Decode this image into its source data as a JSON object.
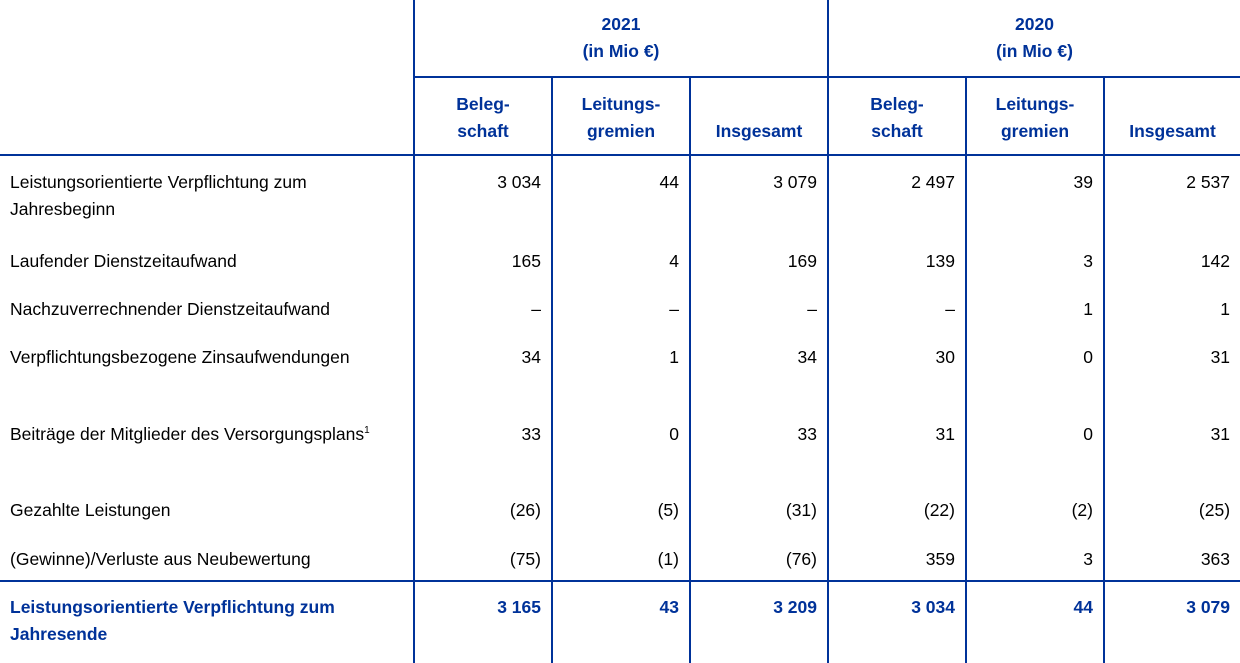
{
  "header": {
    "years": [
      {
        "year": "2021",
        "unit": "(in Mio €)"
      },
      {
        "year": "2020",
        "unit": "(in Mio €)"
      }
    ],
    "subcolumns": [
      {
        "line1": "Beleg-",
        "line2": "schaft"
      },
      {
        "line1": "Leitungs-",
        "line2": "gremien"
      },
      {
        "line1": "",
        "line2": "Insgesamt"
      }
    ]
  },
  "rows": [
    {
      "label": "Leistungsorientierte Verpflichtung zum Jahresbeginn",
      "footnote": "",
      "values": [
        "3 034",
        "44",
        "3 079",
        "2 497",
        "39",
        "2 537"
      ]
    },
    {
      "label": "Laufender Dienstzeitaufwand",
      "footnote": "",
      "values": [
        "165",
        "4",
        "169",
        "139",
        "3",
        "142"
      ]
    },
    {
      "label": "Nachzuverrechnender Dienstzeitaufwand",
      "footnote": "",
      "values": [
        "–",
        "–",
        "–",
        "–",
        "1",
        "1"
      ]
    },
    {
      "label": "Verpflichtungsbezogene Zinsaufwendungen",
      "footnote": "",
      "values": [
        "34",
        "1",
        "34",
        "30",
        "0",
        "31"
      ]
    },
    {
      "label": "Beiträge der Mitglieder des Versorgungsplans",
      "footnote": "1",
      "values": [
        "33",
        "0",
        "33",
        "31",
        "0",
        "31"
      ]
    },
    {
      "label": "Gezahlte Leistungen",
      "footnote": "",
      "values": [
        "(26)",
        "(5)",
        "(31)",
        "(22)",
        "(2)",
        "(25)"
      ]
    },
    {
      "label": "(Gewinne)/Verluste aus Neubewertung",
      "footnote": "",
      "values": [
        "(75)",
        "(1)",
        "(76)",
        "359",
        "3",
        "363"
      ]
    }
  ],
  "total": {
    "label": "Leistungsorientierte Verpflichtung zum Jahresende",
    "values": [
      "3 165",
      "43",
      "3 209",
      "3 034",
      "44",
      "3 079"
    ]
  },
  "colors": {
    "accent": "#003299"
  }
}
